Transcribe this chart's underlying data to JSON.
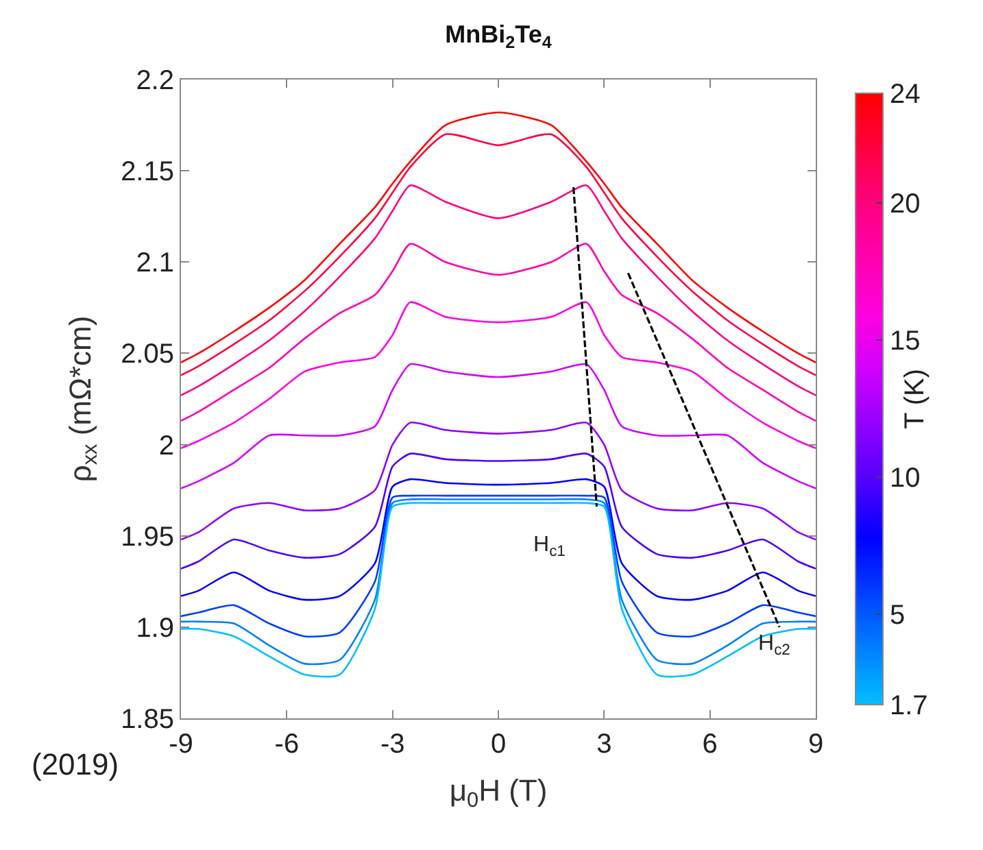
{
  "chart_data": {
    "type": "line",
    "title": "MnBi$_{2}$Te$_{4}$",
    "xlabel": "μ$_{0}$H (T)",
    "ylabel": "ρ$_{xx}$ (mΩ*cm)",
    "clabel": "T (K)",
    "x": [
      -9,
      -8.5,
      -7.5,
      -6.5,
      -5.5,
      -4.5,
      -3.5,
      -3,
      -2.5,
      -1.5,
      0,
      1.5,
      2.5,
      3,
      3.5,
      4.5,
      5.5,
      6.5,
      7.5,
      8.5,
      9
    ],
    "series": [
      {
        "color": "#ff0000",
        "values": [
          2.045,
          2.05,
          2.062,
          2.075,
          2.09,
          2.11,
          2.13,
          2.143,
          2.155,
          2.175,
          2.182,
          2.175,
          2.155,
          2.143,
          2.13,
          2.11,
          2.09,
          2.075,
          2.062,
          2.05,
          2.045
        ]
      },
      {
        "color": "#ff0040",
        "values": [
          2.038,
          2.043,
          2.055,
          2.068,
          2.084,
          2.103,
          2.124,
          2.138,
          2.152,
          2.17,
          2.164,
          2.17,
          2.152,
          2.138,
          2.124,
          2.103,
          2.084,
          2.068,
          2.055,
          2.043,
          2.038
        ]
      },
      {
        "color": "#ff0080",
        "values": [
          2.027,
          2.032,
          2.044,
          2.057,
          2.073,
          2.092,
          2.113,
          2.128,
          2.142,
          2.133,
          2.124,
          2.133,
          2.142,
          2.128,
          2.113,
          2.092,
          2.073,
          2.057,
          2.044,
          2.032,
          2.027
        ]
      },
      {
        "color": "#ff00b0",
        "values": [
          2.013,
          2.018,
          2.03,
          2.042,
          2.058,
          2.072,
          2.082,
          2.095,
          2.11,
          2.1,
          2.093,
          2.1,
          2.11,
          2.095,
          2.082,
          2.072,
          2.058,
          2.042,
          2.03,
          2.018,
          2.013
        ]
      },
      {
        "color": "#ff00e0",
        "values": [
          1.998,
          2.002,
          2.012,
          2.025,
          2.04,
          2.045,
          2.048,
          2.06,
          2.078,
          2.07,
          2.067,
          2.07,
          2.078,
          2.06,
          2.048,
          2.045,
          2.04,
          2.025,
          2.012,
          2.002,
          1.998
        ]
      },
      {
        "color": "#d000ff",
        "values": [
          1.976,
          1.98,
          1.99,
          2.005,
          2.005,
          2.005,
          2.01,
          2.03,
          2.044,
          2.04,
          2.037,
          2.04,
          2.044,
          2.03,
          2.01,
          2.005,
          2.005,
          2.005,
          1.99,
          1.98,
          1.976
        ]
      },
      {
        "color": "#9000ff",
        "values": [
          1.948,
          1.952,
          1.965,
          1.968,
          1.964,
          1.965,
          1.975,
          2.0,
          2.012,
          2.008,
          2.006,
          2.008,
          2.012,
          2.0,
          1.975,
          1.965,
          1.964,
          1.968,
          1.965,
          1.952,
          1.948
        ]
      },
      {
        "color": "#5000ff",
        "values": [
          1.932,
          1.936,
          1.948,
          1.942,
          1.938,
          1.94,
          1.955,
          1.988,
          1.995,
          1.992,
          1.991,
          1.992,
          1.995,
          1.988,
          1.955,
          1.94,
          1.938,
          1.942,
          1.948,
          1.936,
          1.932
        ]
      },
      {
        "color": "#0000ff",
        "values": [
          1.917,
          1.92,
          1.93,
          1.92,
          1.915,
          1.917,
          1.935,
          1.977,
          1.981,
          1.979,
          1.978,
          1.979,
          1.981,
          1.977,
          1.935,
          1.917,
          1.915,
          1.92,
          1.93,
          1.92,
          1.917
        ]
      },
      {
        "color": "#0040ff",
        "values": [
          1.906,
          1.908,
          1.912,
          1.902,
          1.895,
          1.897,
          1.925,
          1.971,
          1.972,
          1.972,
          1.972,
          1.972,
          1.972,
          1.971,
          1.925,
          1.897,
          1.895,
          1.902,
          1.912,
          1.908,
          1.906
        ]
      },
      {
        "color": "#0080ff",
        "values": [
          1.903,
          1.903,
          1.902,
          1.89,
          1.88,
          1.882,
          1.915,
          1.968,
          1.97,
          1.97,
          1.97,
          1.97,
          1.97,
          1.968,
          1.915,
          1.882,
          1.88,
          1.89,
          1.902,
          1.903,
          1.903
        ]
      },
      {
        "color": "#00bfff",
        "values": [
          1.899,
          1.899,
          1.895,
          1.884,
          1.874,
          1.874,
          1.91,
          1.966,
          1.968,
          1.968,
          1.968,
          1.968,
          1.968,
          1.966,
          1.91,
          1.874,
          1.874,
          1.884,
          1.895,
          1.899,
          1.899
        ]
      },
      {
        "type": "line",
        "line_style": "dashed",
        "color": "#000000",
        "x": [
          2.13,
          2.79
        ],
        "values": [
          2.141,
          1.966
        ]
      },
      {
        "type": "line",
        "line_style": "dashed",
        "color": "#000000",
        "x": [
          3.68,
          7.97
        ],
        "values": [
          2.094,
          1.9
        ]
      }
    ],
    "xlim": [
      -9,
      9
    ],
    "xticks": [
      -9,
      -6,
      -3,
      0,
      3,
      6,
      9
    ],
    "ylim": [
      1.85,
      2.2
    ],
    "yticks": [
      1.85,
      1.9,
      1.95,
      2,
      2.05,
      2.1,
      2.15,
      2.2
    ],
    "clim": [
      1.7,
      24
    ],
    "cticks": [
      1.7,
      5,
      10,
      15,
      20,
      24
    ],
    "annotations": [
      "H$_{c1}$",
      "H$_{c2}$",
      "(2019)"
    ]
  }
}
